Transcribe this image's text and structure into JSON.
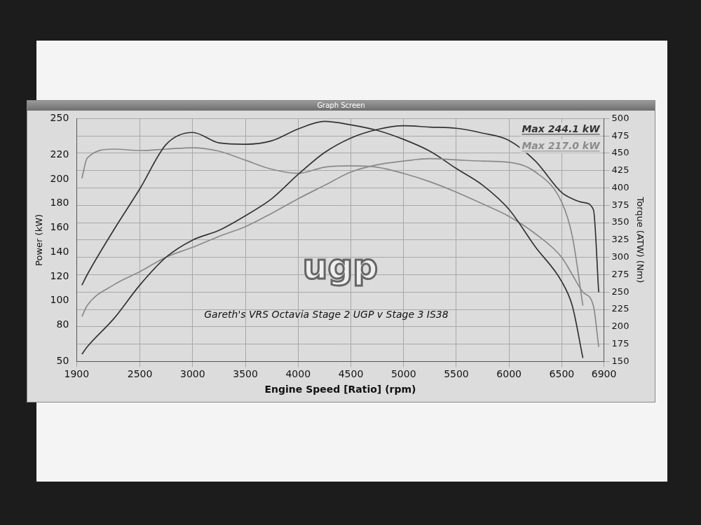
{
  "chart_data": {
    "type": "line",
    "window_title": "Graph Screen",
    "logo": "ugp",
    "title": "Gareth's VRS Octavia Stage 2 UGP v Stage 3 IS38",
    "x_label": "Engine Speed [Ratio] (rpm)",
    "y_label": "Power (kW)",
    "y2_label": "Torque (ATW) (Nm)",
    "annotations": [
      {
        "text": "Max 244.1 kW",
        "color": "#333333"
      },
      {
        "text": "Max 217.0 kW",
        "color": "#8a8a8a"
      }
    ],
    "x": [
      1950,
      2000,
      2250,
      2500,
      2750,
      3000,
      3250,
      3500,
      3750,
      4000,
      4250,
      4500,
      4750,
      5000,
      5250,
      5500,
      5750,
      6000,
      6250,
      6500,
      6600,
      6700,
      6800,
      6850
    ],
    "series": [
      {
        "color": "#333333",
        "axis": "y",
        "values": [
          56,
          62,
          85,
          113,
          136,
          150,
          158,
          170,
          184,
          204,
          222,
          234,
          241,
          244.1,
          243,
          242,
          238,
          232,
          215,
          189,
          184,
          181,
          175,
          107
        ]
      },
      {
        "color": "#8a8a8a",
        "axis": "y",
        "values": [
          87,
          96,
          113,
          124,
          136,
          144,
          153,
          161,
          172,
          184,
          195,
          206,
          212,
          215,
          217.0,
          216,
          215,
          214,
          206,
          181,
          153,
          96,
          null,
          null
        ]
      },
      {
        "color": "#333333",
        "axis": "y2",
        "values": [
          260,
          275,
          339,
          399,
          463,
          480,
          465,
          463,
          468,
          485,
          496,
          491,
          483,
          470,
          453,
          428,
          404,
          369,
          315,
          265,
          230,
          155,
          null,
          null
        ]
      },
      {
        "color": "#8a8a8a",
        "axis": "y2",
        "values": [
          414,
          443,
          456,
          454,
          456,
          458,
          453,
          440,
          427,
          421,
          430,
          432,
          430,
          421,
          409,
          394,
          377,
          359,
          334,
          300,
          275,
          250,
          230,
          171
        ]
      }
    ],
    "xlim": [
      1900,
      6900
    ],
    "xticks": [
      1900,
      2500,
      3000,
      3500,
      4000,
      4500,
      5000,
      5500,
      6000,
      6500,
      6900
    ],
    "ylim": [
      50,
      250
    ],
    "yticks": [
      50,
      80,
      100,
      120,
      140,
      160,
      180,
      200,
      220,
      250
    ],
    "y2lim": [
      150,
      500
    ],
    "y2ticks": [
      150,
      175,
      200,
      225,
      250,
      275,
      300,
      325,
      350,
      375,
      400,
      425,
      450,
      475,
      500
    ],
    "grid": true
  }
}
